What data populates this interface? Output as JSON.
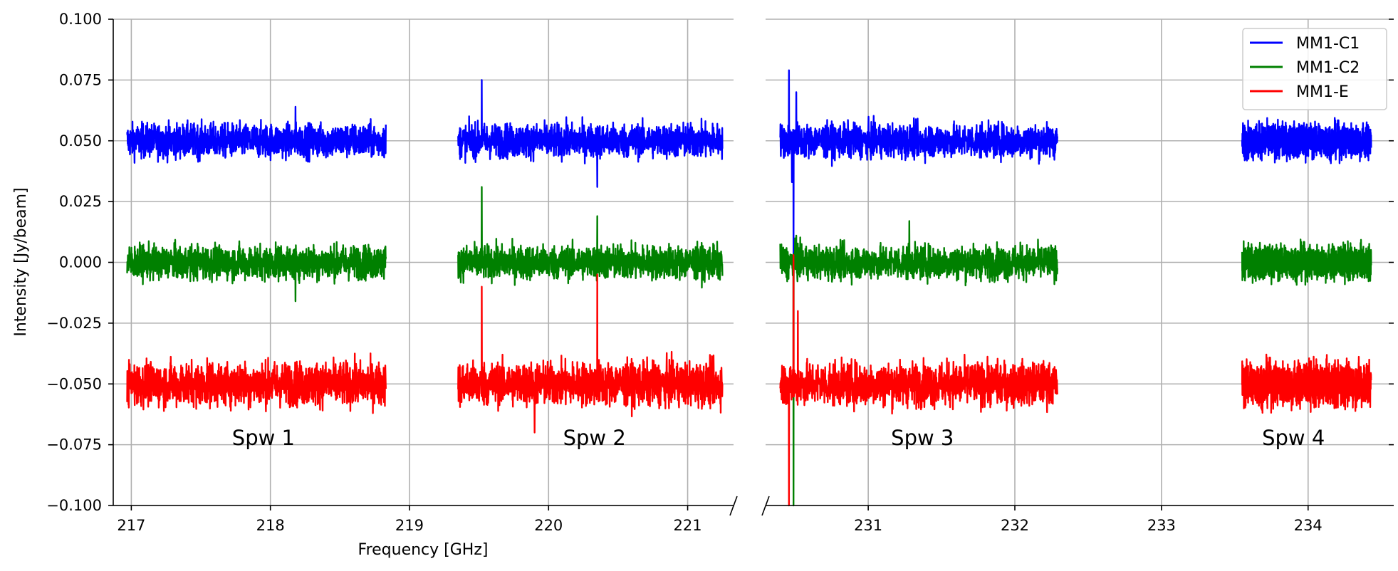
{
  "chart_data": {
    "type": "line",
    "title": "",
    "xlabel": "Frequency [GHz]",
    "ylabel": "Intensity [Jy/beam]",
    "ylim": [
      -0.1,
      0.1
    ],
    "yticks": [
      -0.1,
      -0.075,
      -0.05,
      -0.025,
      0.0,
      0.025,
      0.05,
      0.075,
      0.1
    ],
    "ytick_labels": [
      "−0.100",
      "−0.075",
      "−0.050",
      "−0.025",
      "0.000",
      "0.025",
      "0.050",
      "0.075",
      "0.100"
    ],
    "grid": true,
    "legend_position": "top-right",
    "broken_axis": true,
    "panels": [
      {
        "xlim": [
          216.87,
          221.33
        ],
        "xticks": [
          217,
          218,
          219,
          220,
          221
        ],
        "xtick_labels": [
          "217",
          "218",
          "219",
          "220",
          "221"
        ]
      },
      {
        "xlim": [
          230.3,
          234.55
        ],
        "xticks": [
          231,
          232,
          233,
          234
        ],
        "xtick_labels": [
          "231",
          "232",
          "233",
          "234"
        ]
      }
    ],
    "spectral_windows": [
      {
        "label": "Spw 1",
        "panel": 0,
        "range": [
          216.97,
          218.83
        ],
        "label_x": 217.95
      },
      {
        "label": "Spw 2",
        "panel": 0,
        "range": [
          219.35,
          221.25
        ],
        "label_x": 220.33
      },
      {
        "label": "Spw 3",
        "panel": 1,
        "range": [
          230.4,
          232.29
        ],
        "label_x": 231.37
      },
      {
        "label": "Spw 4",
        "panel": 1,
        "range": [
          233.55,
          234.43
        ],
        "label_x": 233.9
      }
    ],
    "series": [
      {
        "name": "MM1-C1",
        "color": "#0000ff",
        "offset": 0.05,
        "noise": 0.0035,
        "features": [
          [
            218.18,
            0.064
          ],
          [
            219.52,
            0.075
          ],
          [
            220.35,
            0.031
          ],
          [
            230.46,
            0.079
          ],
          [
            230.51,
            0.07
          ],
          [
            230.48,
            0.033
          ],
          [
            230.49,
            0.0
          ]
        ]
      },
      {
        "name": "MM1-C2",
        "color": "#008000",
        "offset": 0.0,
        "noise": 0.0035,
        "features": [
          [
            218.18,
            -0.016
          ],
          [
            219.52,
            0.031
          ],
          [
            220.35,
            0.019
          ],
          [
            230.49,
            -0.1
          ],
          [
            230.51,
            0.011
          ],
          [
            231.28,
            0.017
          ]
        ]
      },
      {
        "name": "MM1-E",
        "color": "#ff0000",
        "offset": -0.05,
        "noise": 0.0045,
        "features": [
          [
            219.52,
            -0.01
          ],
          [
            219.9,
            -0.07
          ],
          [
            220.35,
            -0.005
          ],
          [
            230.49,
            0.003
          ],
          [
            230.46,
            -0.1
          ],
          [
            230.52,
            -0.02
          ]
        ]
      }
    ]
  }
}
